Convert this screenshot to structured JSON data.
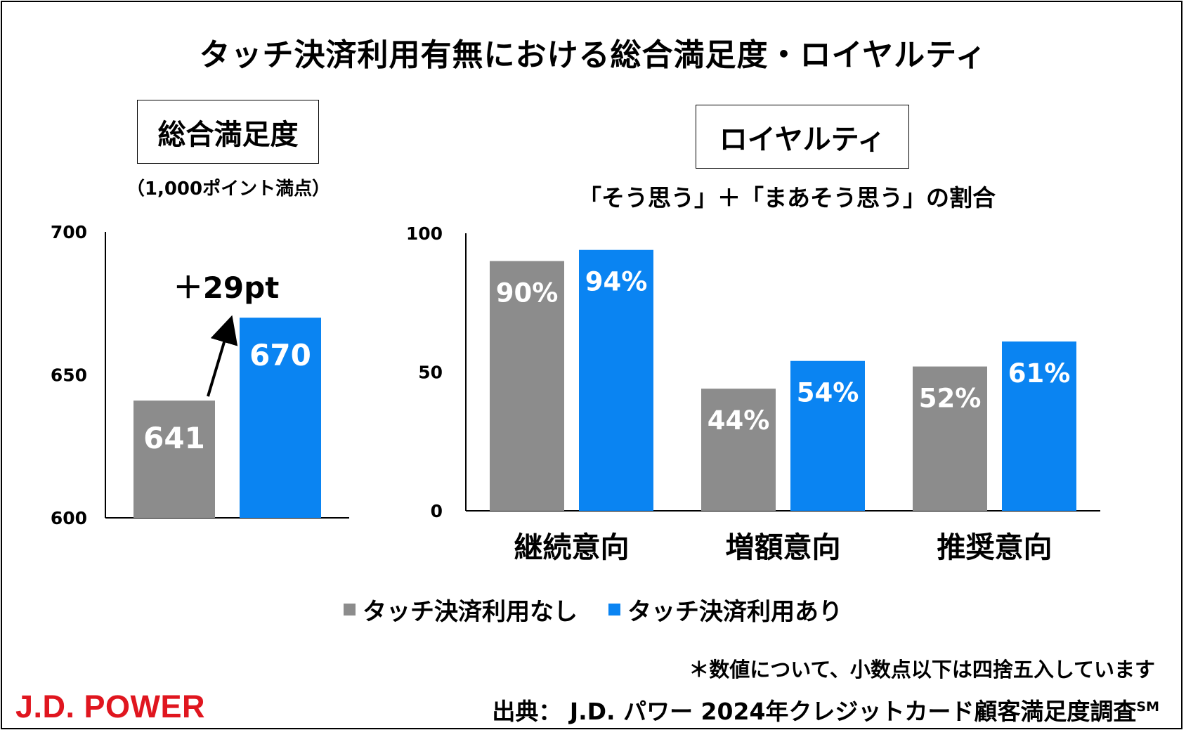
{
  "title": "タッチ決済利用有無における総合満足度・ロイヤルティ",
  "colors": {
    "without": "#8c8c8c",
    "with": "#0a84f2",
    "logo": "#e0161f"
  },
  "chart_data": [
    {
      "type": "bar",
      "title": "総合満足度",
      "subtitle": "（1,000ポイント満点）",
      "categories": [
        "タッチ決済利用なし",
        "タッチ決済利用あり"
      ],
      "values": [
        641,
        670
      ],
      "value_labels": [
        "641",
        "670"
      ],
      "ylim": [
        600,
        700
      ],
      "yticks": [
        600,
        650,
        700
      ],
      "ytick_labels": [
        "600",
        "650",
        "700"
      ],
      "annotation": "＋29pt"
    },
    {
      "type": "bar",
      "title": "ロイヤルティ",
      "subtitle": "「そう思う」＋「まあそう思う」の割合",
      "categories": [
        "継続意向",
        "増額意向",
        "推奨意向"
      ],
      "series": [
        {
          "name": "タッチ決済利用なし",
          "values": [
            90,
            44,
            52
          ],
          "labels": [
            "90%",
            "44%",
            "52%"
          ]
        },
        {
          "name": "タッチ決済利用あり",
          "values": [
            94,
            54,
            61
          ],
          "labels": [
            "94%",
            "54%",
            "61%"
          ]
        }
      ],
      "ylim": [
        0,
        100
      ],
      "yticks": [
        0,
        50,
        100
      ],
      "ytick_labels": [
        "0",
        "50",
        "100"
      ]
    }
  ],
  "legend": [
    {
      "label": "タッチ決済利用なし"
    },
    {
      "label": "タッチ決済利用あり"
    }
  ],
  "footnote": "＊数値について、小数点以下は四捨五入しています",
  "source": "出典：  J.D. パワー 2024年クレジットカード顧客満足度調査",
  "source_mark": "SM",
  "logo": "J.D. POWER"
}
